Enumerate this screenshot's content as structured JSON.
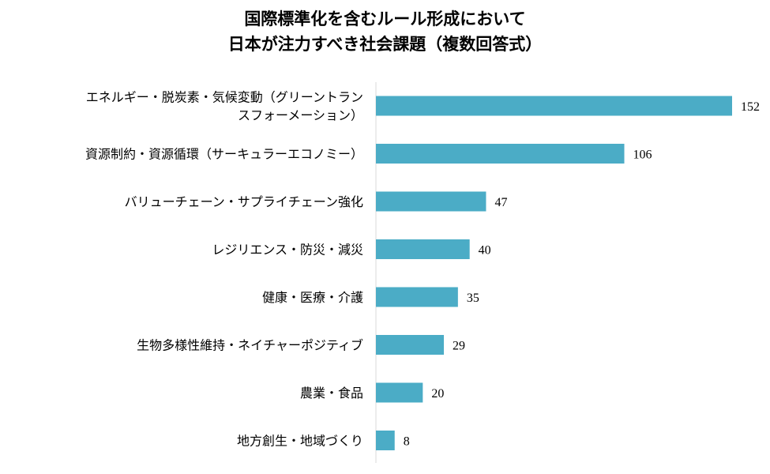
{
  "chart_data": {
    "type": "bar",
    "orientation": "horizontal",
    "title_lines": [
      "国際標準化を含むルール形成において",
      "日本が注力すべき社会課題（複数回答式）"
    ],
    "categories": [
      [
        "エネルギー・脱炭素・気候変動（グリーントラン",
        "スフォーメーション）"
      ],
      [
        "資源制約・資源循環（サーキュラーエコノミー）"
      ],
      [
        "バリューチェーン・サプライチェーン強化"
      ],
      [
        "レジリエンス・防災・減災"
      ],
      [
        "健康・医療・介護"
      ],
      [
        "生物多様性維持・ネイチャーポジティブ"
      ],
      [
        "農業・食品"
      ],
      [
        "地方創生・地域づくり"
      ]
    ],
    "values": [
      152,
      106,
      47,
      40,
      35,
      29,
      20,
      8
    ],
    "xlim": [
      0,
      152
    ],
    "grid": false,
    "legend": "none",
    "bar_color": "#4bacc6"
  }
}
